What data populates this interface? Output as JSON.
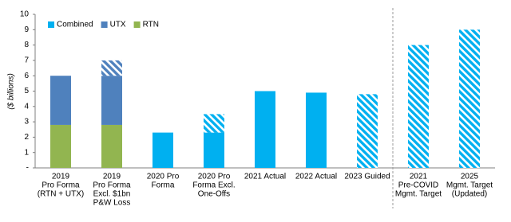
{
  "chart_data": {
    "type": "stacked_bar",
    "y_axis_label": "($ billions)",
    "categories": [
      [
        "2019",
        "Pro Forma",
        "(RTN + UTX)"
      ],
      [
        "2019",
        "Pro Forma",
        "Excl. $1bn",
        "P&W Loss"
      ],
      [
        "2020 Pro",
        "Forma"
      ],
      [
        "2020 Pro",
        "Forma Excl.",
        "One-Offs"
      ],
      [
        "2021 Actual"
      ],
      [
        "2022 Actual"
      ],
      [
        "2023 Guided"
      ],
      [
        "2021",
        "Pre-COVID",
        "Mgmt. Target"
      ],
      [
        "2025",
        "Mgmt. Target",
        "(Updated)"
      ]
    ],
    "series": [
      {
        "name": "RTN",
        "color": "#92b550",
        "values": [
          2.8,
          2.8,
          null,
          null,
          null,
          null,
          null,
          null,
          null
        ]
      },
      {
        "name": "UTX",
        "color": "#4f81bd",
        "values": [
          3.2,
          3.2,
          null,
          null,
          null,
          null,
          null,
          null,
          null
        ]
      },
      {
        "name": "Combined",
        "color": "#00b0f0",
        "values": [
          null,
          null,
          2.3,
          2.3,
          5.0,
          4.9,
          null,
          null,
          null
        ]
      },
      {
        "color": "#4f81bd",
        "pattern": "hatch",
        "values": [
          null,
          1.0,
          null,
          null,
          null,
          null,
          null,
          null,
          null
        ]
      },
      {
        "color": "#00b0f0",
        "pattern": "hatch",
        "values": [
          null,
          null,
          null,
          1.2,
          null,
          null,
          4.8,
          8.0,
          9.0
        ]
      }
    ],
    "legend_order": [
      2,
      1,
      0
    ],
    "ylim": [
      0,
      10
    ],
    "yticks": [
      {
        "value": 0,
        "label": "-"
      },
      1,
      2,
      3,
      4,
      5,
      6,
      7,
      8,
      9,
      10
    ]
  }
}
